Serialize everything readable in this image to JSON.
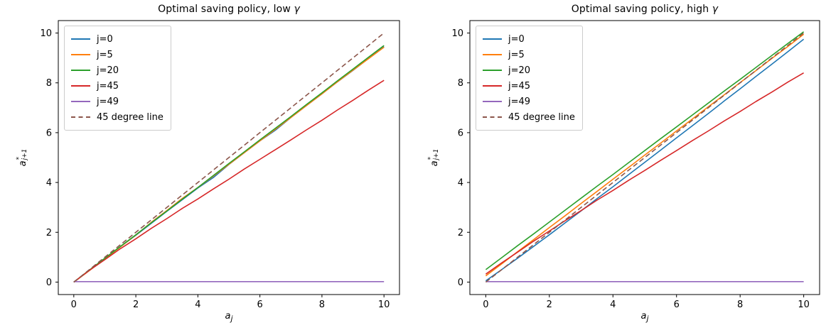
{
  "figure": {
    "background": "#ffffff",
    "text_color": "#000000"
  },
  "chart_data": [
    {
      "type": "line",
      "title": "Optimal saving policy, low γ",
      "xlabel": {
        "base": "a",
        "sub": "j"
      },
      "ylabel": {
        "base": "a",
        "sup": "*",
        "sub": "j+1"
      },
      "axes": {
        "xlim": [
          -0.5,
          10.5
        ],
        "ylim": [
          -0.5,
          10.5
        ],
        "xticks": [
          0,
          2,
          4,
          6,
          8,
          10
        ],
        "yticks": [
          0,
          2,
          4,
          6,
          8,
          10
        ],
        "grid": false
      },
      "legend_loc": "upper left",
      "x0": 0,
      "dx": 0.5,
      "series": [
        {
          "name": "j=0",
          "color": "#1f77b4",
          "dash": false,
          "y": [
            0,
            0.47,
            0.93,
            1.42,
            1.88,
            2.36,
            2.84,
            3.31,
            3.78,
            4.2,
            4.72,
            5.2,
            5.67,
            6.1,
            6.61,
            7.09,
            7.56,
            8.04,
            8.5,
            8.98,
            9.45
          ]
        },
        {
          "name": "j=5",
          "color": "#ff7f0e",
          "dash": false,
          "y": [
            0,
            0.46,
            0.94,
            1.41,
            1.89,
            2.4,
            2.87,
            3.36,
            3.8,
            4.26,
            4.73,
            5.2,
            5.67,
            6.14,
            6.61,
            7.09,
            7.56,
            8.04,
            8.51,
            8.97,
            9.43
          ]
        },
        {
          "name": "j=20",
          "color": "#2ca02c",
          "dash": false,
          "y": [
            0,
            0.48,
            0.96,
            1.43,
            1.9,
            2.38,
            2.85,
            3.33,
            3.8,
            4.28,
            4.76,
            5.23,
            5.71,
            6.18,
            6.65,
            7.13,
            7.6,
            8.08,
            8.55,
            9.03,
            9.5
          ]
        },
        {
          "name": "j=45",
          "color": "#d62728",
          "dash": false,
          "y": [
            0,
            0.47,
            0.9,
            1.34,
            1.74,
            2.16,
            2.55,
            2.96,
            3.34,
            3.74,
            4.13,
            4.54,
            4.93,
            5.32,
            5.71,
            6.11,
            6.5,
            6.91,
            7.3,
            7.71,
            8.1
          ]
        },
        {
          "name": "j=49",
          "color": "#9467bd",
          "dash": false,
          "y": [
            0.02,
            0.02,
            0.02,
            0.02,
            0.02,
            0.02,
            0.02,
            0.02,
            0.02,
            0.02,
            0.02,
            0.02,
            0.02,
            0.02,
            0.02,
            0.02,
            0.02,
            0.02,
            0.02,
            0.02,
            0.02
          ]
        },
        {
          "name": "45 degree line",
          "color": "#8c564b",
          "dash": true,
          "x": [
            0,
            10
          ],
          "y": [
            0,
            10
          ]
        }
      ]
    },
    {
      "type": "line",
      "title": "Optimal saving policy, high γ",
      "xlabel": {
        "base": "a",
        "sub": "j"
      },
      "ylabel": {
        "base": "a",
        "sup": "*",
        "sub": "j+1"
      },
      "axes": {
        "xlim": [
          -0.5,
          10.5
        ],
        "ylim": [
          -0.5,
          10.5
        ],
        "xticks": [
          0,
          2,
          4,
          6,
          8,
          10
        ],
        "yticks": [
          0,
          2,
          4,
          6,
          8,
          10
        ],
        "grid": false
      },
      "legend_loc": "upper left",
      "x0": 0,
      "dx": 0.5,
      "series": [
        {
          "name": "j=0",
          "color": "#1f77b4",
          "dash": false,
          "y": [
            0.05,
            0.5,
            0.96,
            1.43,
            1.9,
            2.38,
            2.86,
            3.35,
            3.83,
            4.32,
            4.81,
            5.3,
            5.79,
            6.28,
            6.77,
            7.27,
            7.76,
            8.26,
            8.75,
            9.25,
            9.75
          ]
        },
        {
          "name": "j=5",
          "color": "#ff7f0e",
          "dash": false,
          "y": [
            0.25,
            0.73,
            1.22,
            1.7,
            2.19,
            2.67,
            3.16,
            3.64,
            4.13,
            4.61,
            5.1,
            5.58,
            6.07,
            6.55,
            7.04,
            7.52,
            8.01,
            8.49,
            8.98,
            9.46,
            9.95
          ]
        },
        {
          "name": "j=20",
          "color": "#2ca02c",
          "dash": false,
          "y": [
            0.5,
            0.98,
            1.46,
            1.93,
            2.41,
            2.89,
            3.37,
            3.85,
            4.32,
            4.8,
            5.28,
            5.76,
            6.23,
            6.71,
            7.19,
            7.67,
            8.14,
            8.62,
            9.1,
            9.58,
            10.05
          ]
        },
        {
          "name": "j=45",
          "color": "#d62728",
          "dash": false,
          "y": [
            0.32,
            0.77,
            1.2,
            1.64,
            2.05,
            2.47,
            2.87,
            3.29,
            3.68,
            4.09,
            4.48,
            4.89,
            5.28,
            5.68,
            6.07,
            6.47,
            6.85,
            7.25,
            7.63,
            8.03,
            8.4
          ]
        },
        {
          "name": "j=49",
          "color": "#9467bd",
          "dash": false,
          "y": [
            0.02,
            0.02,
            0.02,
            0.02,
            0.02,
            0.02,
            0.02,
            0.02,
            0.02,
            0.02,
            0.02,
            0.02,
            0.02,
            0.02,
            0.02,
            0.02,
            0.02,
            0.02,
            0.02,
            0.02,
            0.02
          ]
        },
        {
          "name": "45 degree line",
          "color": "#8c564b",
          "dash": true,
          "x": [
            0,
            10
          ],
          "y": [
            0,
            10
          ]
        }
      ]
    }
  ]
}
